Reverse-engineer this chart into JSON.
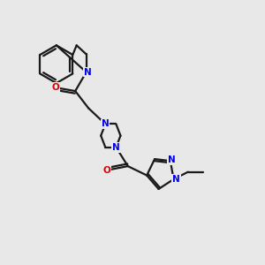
{
  "background_color": "#e8e8e8",
  "bond_color": "#1a1a1a",
  "nitrogen_color": "#0000ee",
  "oxygen_color": "#dd0000",
  "line_width": 1.6,
  "figsize": [
    3.0,
    3.0
  ],
  "dpi": 100,
  "xlim": [
    0,
    10
  ],
  "ylim": [
    0,
    10
  ]
}
